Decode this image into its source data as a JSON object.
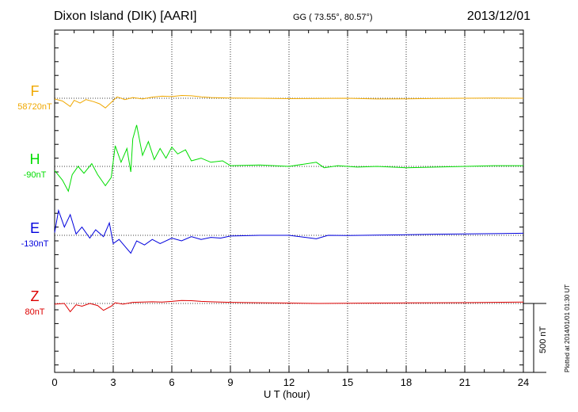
{
  "chart_data": {
    "type": "line",
    "title": "Dixon Island (DIK)  [AARI]",
    "coords": "GG ( 73.55°,  80.57°)",
    "date": "2013/12/01",
    "xlabel": "U T (hour)",
    "xlim": [
      0,
      24
    ],
    "xticks": [
      "0",
      "3",
      "6",
      "9",
      "12",
      "15",
      "18",
      "21",
      "24"
    ],
    "scale_label": "500 nT",
    "scale_nT": 500,
    "plotted_note": "Plotted at 2014/01/01 01:30 UT",
    "series": [
      {
        "name": "F",
        "baseline": "58720nT",
        "color": "#f0a800",
        "points": [
          [
            0,
            -5
          ],
          [
            0.4,
            -20
          ],
          [
            0.8,
            -60
          ],
          [
            1.0,
            -15
          ],
          [
            1.3,
            -35
          ],
          [
            1.6,
            -10
          ],
          [
            2.0,
            -25
          ],
          [
            2.3,
            -40
          ],
          [
            2.6,
            -70
          ],
          [
            2.9,
            -30
          ],
          [
            3.2,
            10
          ],
          [
            3.6,
            -10
          ],
          [
            4.0,
            5
          ],
          [
            4.5,
            -5
          ],
          [
            5.0,
            8
          ],
          [
            5.5,
            15
          ],
          [
            6.0,
            12
          ],
          [
            6.5,
            20
          ],
          [
            7.0,
            18
          ],
          [
            7.5,
            10
          ],
          [
            8.0,
            5
          ],
          [
            9.0,
            2
          ],
          [
            10.5,
            0
          ],
          [
            12.0,
            -3
          ],
          [
            13.5,
            -2
          ],
          [
            15.0,
            0
          ],
          [
            16.5,
            -5
          ],
          [
            18.0,
            -4
          ],
          [
            19.5,
            -2
          ],
          [
            21.0,
            0
          ],
          [
            22.5,
            1
          ],
          [
            24.0,
            0
          ]
        ]
      },
      {
        "name": "H",
        "baseline": "-90nT",
        "color": "#00dd00",
        "points": [
          [
            0,
            -30
          ],
          [
            0.4,
            -100
          ],
          [
            0.7,
            -180
          ],
          [
            0.9,
            -60
          ],
          [
            1.2,
            0
          ],
          [
            1.5,
            -50
          ],
          [
            1.9,
            20
          ],
          [
            2.2,
            -60
          ],
          [
            2.6,
            -140
          ],
          [
            2.9,
            -80
          ],
          [
            3.1,
            150
          ],
          [
            3.4,
            30
          ],
          [
            3.7,
            130
          ],
          [
            3.9,
            -40
          ],
          [
            4.0,
            200
          ],
          [
            4.2,
            300
          ],
          [
            4.5,
            80
          ],
          [
            4.8,
            180
          ],
          [
            5.1,
            50
          ],
          [
            5.4,
            130
          ],
          [
            5.7,
            60
          ],
          [
            6.0,
            140
          ],
          [
            6.3,
            90
          ],
          [
            6.7,
            120
          ],
          [
            7.0,
            40
          ],
          [
            7.5,
            60
          ],
          [
            8.0,
            30
          ],
          [
            8.6,
            40
          ],
          [
            9.0,
            5
          ],
          [
            10.5,
            10
          ],
          [
            12.0,
            0
          ],
          [
            13.4,
            30
          ],
          [
            13.8,
            -10
          ],
          [
            14.5,
            5
          ],
          [
            15.5,
            -5
          ],
          [
            16.5,
            0
          ],
          [
            18.0,
            -10
          ],
          [
            19.5,
            -5
          ],
          [
            21.0,
            0
          ],
          [
            22.5,
            5
          ],
          [
            24.0,
            5
          ]
        ]
      },
      {
        "name": "E",
        "baseline": "-130nT",
        "color": "#0000dd",
        "points": [
          [
            0,
            20
          ],
          [
            0.2,
            180
          ],
          [
            0.5,
            60
          ],
          [
            0.8,
            150
          ],
          [
            1.1,
            10
          ],
          [
            1.4,
            60
          ],
          [
            1.8,
            -20
          ],
          [
            2.1,
            40
          ],
          [
            2.5,
            -10
          ],
          [
            2.8,
            90
          ],
          [
            3.0,
            -60
          ],
          [
            3.3,
            -30
          ],
          [
            3.6,
            -80
          ],
          [
            3.9,
            -130
          ],
          [
            4.2,
            -40
          ],
          [
            4.6,
            -70
          ],
          [
            5.0,
            -30
          ],
          [
            5.4,
            -60
          ],
          [
            6.0,
            -20
          ],
          [
            6.5,
            -40
          ],
          [
            7.0,
            -10
          ],
          [
            7.5,
            -30
          ],
          [
            8.0,
            -15
          ],
          [
            8.5,
            -20
          ],
          [
            9.0,
            -5
          ],
          [
            10.5,
            0
          ],
          [
            12.0,
            0
          ],
          [
            13.4,
            -25
          ],
          [
            14.0,
            0
          ],
          [
            15.0,
            -2
          ],
          [
            16.5,
            2
          ],
          [
            18.0,
            4
          ],
          [
            19.5,
            8
          ],
          [
            21.0,
            10
          ],
          [
            22.5,
            12
          ],
          [
            24.0,
            15
          ]
        ]
      },
      {
        "name": "Z",
        "baseline": "80nT",
        "color": "#dd0000",
        "points": [
          [
            0,
            -5
          ],
          [
            0.5,
            0
          ],
          [
            0.8,
            -60
          ],
          [
            1.1,
            -10
          ],
          [
            1.4,
            -20
          ],
          [
            1.8,
            0
          ],
          [
            2.2,
            -15
          ],
          [
            2.5,
            -50
          ],
          [
            2.9,
            -20
          ],
          [
            3.1,
            5
          ],
          [
            3.5,
            -5
          ],
          [
            4.0,
            8
          ],
          [
            4.5,
            10
          ],
          [
            5.0,
            12
          ],
          [
            5.5,
            10
          ],
          [
            6.0,
            15
          ],
          [
            6.5,
            22
          ],
          [
            7.0,
            20
          ],
          [
            7.5,
            15
          ],
          [
            8.0,
            12
          ],
          [
            9.0,
            8
          ],
          [
            10.5,
            5
          ],
          [
            12.0,
            3
          ],
          [
            13.5,
            0
          ],
          [
            15.0,
            2
          ],
          [
            16.5,
            3
          ],
          [
            18.0,
            4
          ],
          [
            19.5,
            5
          ],
          [
            21.0,
            6
          ],
          [
            22.5,
            8
          ],
          [
            24.0,
            10
          ]
        ]
      }
    ]
  }
}
